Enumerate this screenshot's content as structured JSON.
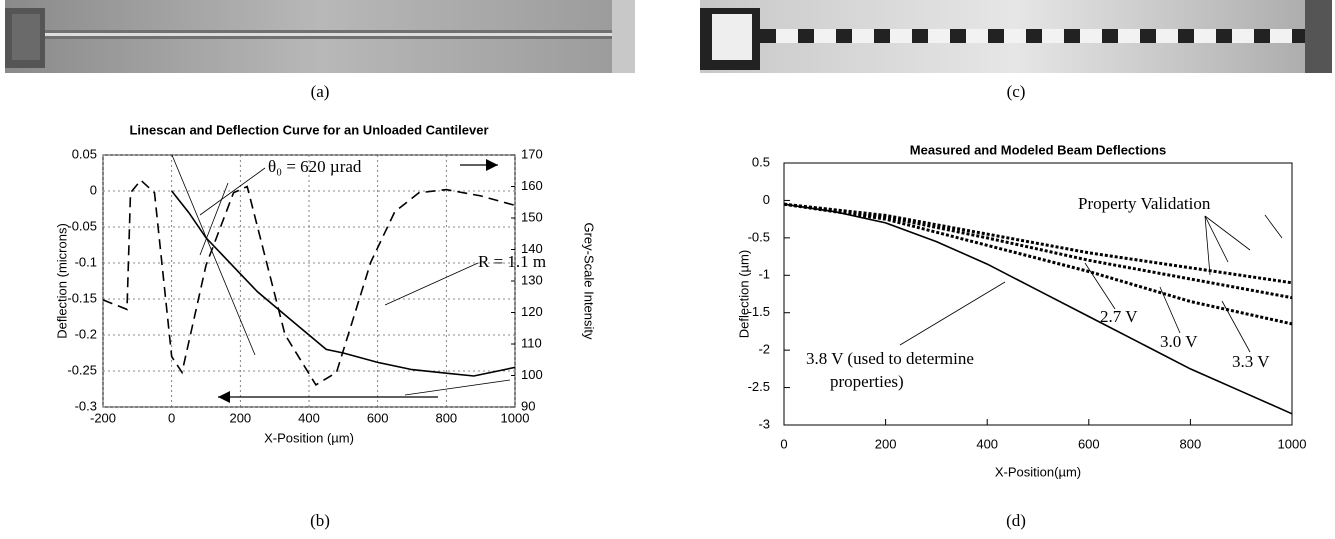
{
  "figure": {
    "captions": [
      "(a)",
      "(c)",
      "(b)",
      "(d)"
    ]
  },
  "chart_data": [
    {
      "type": "line",
      "title": "Linescan and Deflection Curve for an Unloaded Cantilever",
      "xlabel": "X-Position (µm)",
      "ylabel": "Deflection (microns)",
      "y2label": "Grey-Scale Intensity",
      "xlim": [
        -200,
        1000
      ],
      "xticks": [
        -200,
        0,
        200,
        400,
        600,
        800,
        1000
      ],
      "ylim": [
        -0.3,
        0.05
      ],
      "yticks": [
        -0.3,
        -0.25,
        -0.2,
        -0.15,
        -0.1,
        -0.05,
        0,
        0.05
      ],
      "y2lim": [
        90,
        170
      ],
      "y2ticks": [
        90,
        100,
        110,
        120,
        130,
        140,
        150,
        160,
        170
      ],
      "grid": true,
      "series": [
        {
          "color": "#000000",
          "line_style": "solid",
          "x": [
            0,
            50,
            100,
            150,
            200,
            250,
            300,
            350,
            400,
            450,
            500,
            600,
            700,
            800,
            880,
            1000
          ],
          "values": [
            0,
            -0.03,
            -0.065,
            -0.09,
            -0.115,
            -0.14,
            -0.16,
            -0.18,
            -0.2,
            -0.22,
            -0.225,
            -0.238,
            -0.248,
            -0.253,
            -0.257,
            -0.245
          ]
        },
        {
          "color": "#000000",
          "line_style": "dashed",
          "axis": "y2",
          "x": [
            -200,
            -130,
            -120,
            -90,
            -50,
            0,
            30,
            100,
            180,
            220,
            330,
            420,
            480,
            580,
            650,
            720,
            800,
            900,
            1000
          ],
          "values": [
            124,
            121,
            158,
            162,
            158,
            106,
            101,
            135,
            158,
            160,
            113,
            97,
            101,
            136,
            152,
            158,
            159,
            157,
            154
          ]
        }
      ],
      "annotations": [
        "θ₀ = 620 µrad",
        "R = 1.1 m"
      ]
    },
    {
      "type": "line",
      "title": "Measured and Modeled Beam Deflections",
      "xlabel": "X-Position(µm)",
      "ylabel": "Deflection (µm)",
      "xlim": [
        0,
        1000
      ],
      "xticks": [
        0,
        200,
        400,
        600,
        800,
        1000
      ],
      "ylim": [
        -3,
        0.5
      ],
      "yticks": [
        -3,
        -2.5,
        -2,
        -1.5,
        -1,
        -0.5,
        0,
        0.5
      ],
      "grid": false,
      "series": [
        {
          "color": "#000000",
          "line_style": "solid",
          "x": [
            0,
            100,
            200,
            300,
            400,
            500,
            600,
            700,
            800,
            900,
            1000
          ],
          "values": [
            -0.05,
            -0.15,
            -0.3,
            -0.55,
            -0.85,
            -1.2,
            -1.55,
            -1.9,
            -2.25,
            -2.55,
            -2.85
          ]
        },
        {
          "color": "#000000",
          "line_style": "dotted",
          "x": [
            0,
            200,
            400,
            600,
            800,
            1000
          ],
          "values": [
            -0.05,
            -0.25,
            -0.6,
            -0.95,
            -1.35,
            -1.65
          ]
        },
        {
          "color": "#000000",
          "line_style": "dotted",
          "x": [
            0,
            200,
            400,
            600,
            800,
            1000
          ],
          "values": [
            -0.05,
            -0.22,
            -0.5,
            -0.8,
            -1.05,
            -1.3
          ]
        },
        {
          "color": "#000000",
          "line_style": "dotted",
          "x": [
            0,
            200,
            400,
            600,
            800,
            1000
          ],
          "values": [
            -0.05,
            -0.2,
            -0.45,
            -0.7,
            -0.9,
            -1.1
          ]
        }
      ],
      "annotations": [
        "Property Validation",
        "2.7 V",
        "3.0 V",
        "3.3 V",
        "3.8 V (used to determine",
        "properties)"
      ]
    }
  ]
}
